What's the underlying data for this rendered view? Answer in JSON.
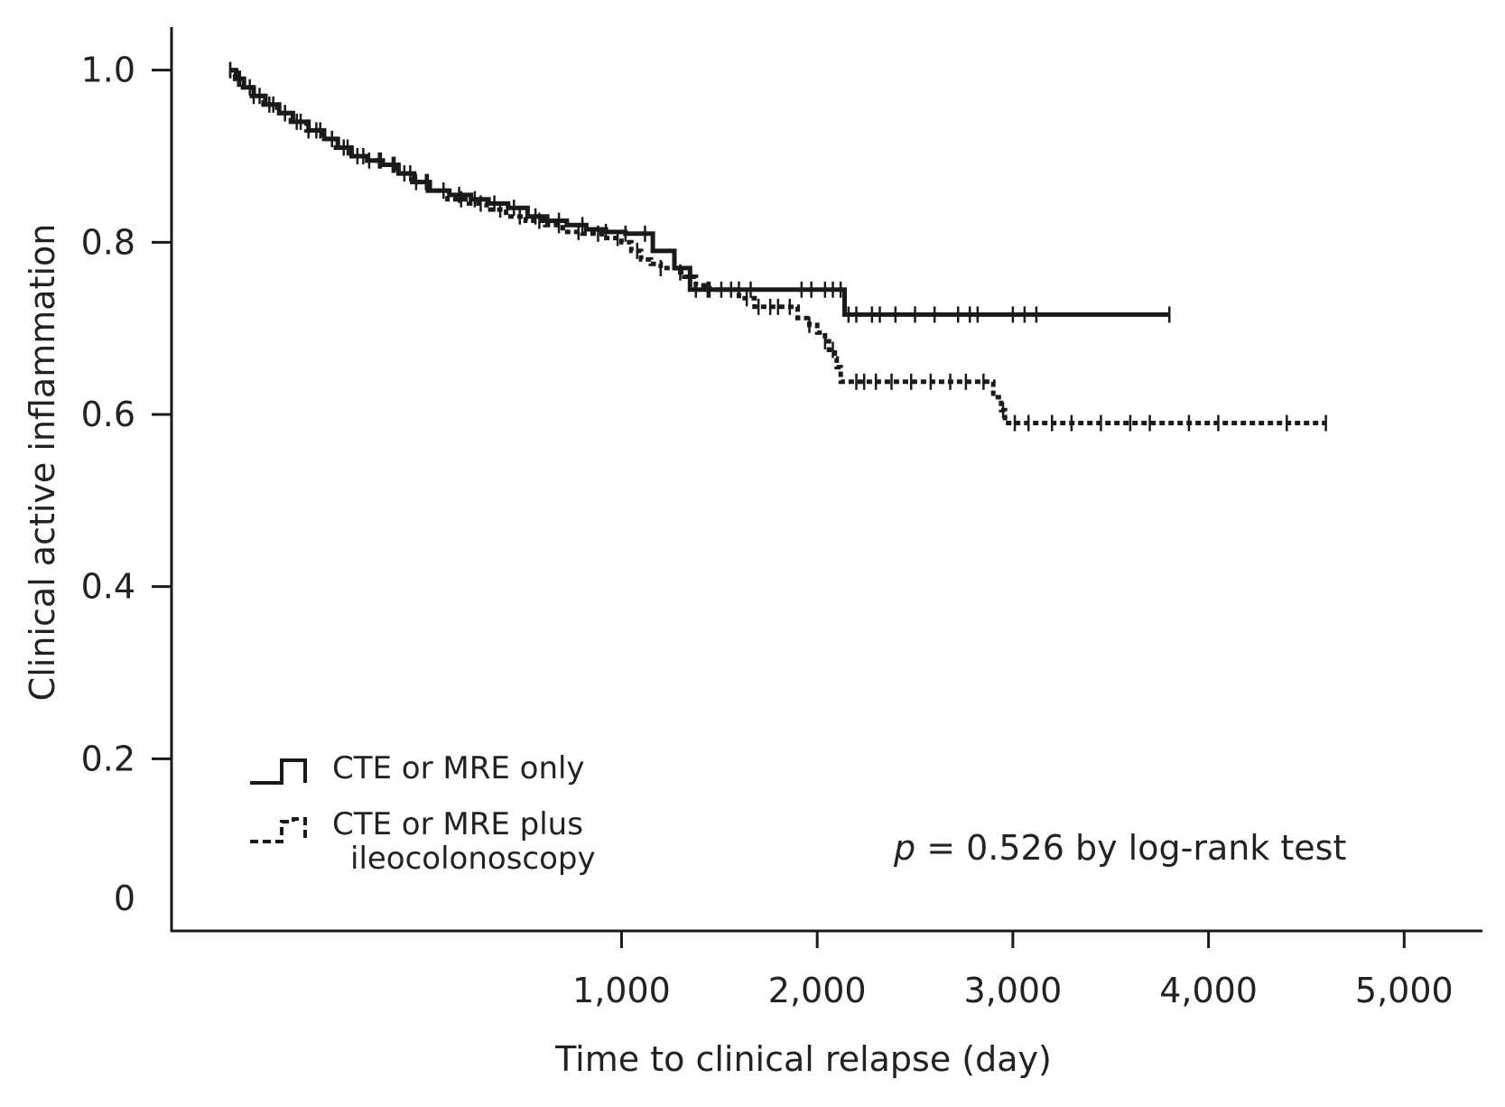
{
  "chart_data": {
    "type": "line",
    "subtype": "kaplan-meier",
    "title": "",
    "xlabel": "Time to clinical relapse (day)",
    "ylabel": "Clinical active inflammation",
    "xlim": [
      -1300,
      5400
    ],
    "ylim": [
      0,
      1.05
    ],
    "x_ticks": [
      1000,
      2000,
      3000,
      4000,
      5000
    ],
    "x_tick_labels": [
      "1,000",
      "2,000",
      "3,000",
      "4,000",
      "5,000"
    ],
    "y_ticks": [
      0,
      0.2,
      0.4,
      0.6,
      0.8,
      1.0
    ],
    "y_tick_labels": [
      "0",
      "0.2",
      "0.4",
      "0.6",
      "0.8",
      "1.0"
    ],
    "grid": false,
    "legend_position": "bottom-left",
    "annotation": {
      "italic": "p",
      "rest": " = 0.526 by log-rank test"
    },
    "series": [
      {
        "name": "CTE or MRE only",
        "line_style": "solid",
        "color": "#1a1a1a",
        "x": [
          -1000,
          -970,
          -930,
          -880,
          -820,
          -750,
          -680,
          -600,
          -520,
          -450,
          -380,
          -300,
          -220,
          -140,
          -60,
          20,
          120,
          230,
          320,
          420,
          520,
          620,
          720,
          820,
          920,
          1020,
          1090,
          1150,
          1160,
          1260,
          1270,
          1340,
          1350,
          2130,
          2140,
          3800
        ],
        "y": [
          1.0,
          0.99,
          0.98,
          0.97,
          0.96,
          0.95,
          0.94,
          0.93,
          0.92,
          0.91,
          0.9,
          0.895,
          0.89,
          0.88,
          0.87,
          0.86,
          0.855,
          0.85,
          0.845,
          0.84,
          0.83,
          0.825,
          0.82,
          0.815,
          0.812,
          0.81,
          0.81,
          0.81,
          0.79,
          0.79,
          0.77,
          0.77,
          0.745,
          0.745,
          0.716,
          0.716
        ],
        "censor_x": [
          -1000,
          -960,
          -900,
          -850,
          -780,
          -720,
          -660,
          -600,
          -540,
          -480,
          -420,
          -350,
          -290,
          -230,
          -170,
          -110,
          -50,
          10,
          90,
          170,
          250,
          350,
          450,
          560,
          680,
          800,
          920,
          1020,
          1120,
          1380,
          1440,
          1510,
          1600,
          1660,
          1920,
          1970,
          2040,
          2080,
          2120,
          2160,
          2200,
          2280,
          2320,
          2400,
          2500,
          2600,
          2720,
          2780,
          2820,
          3000,
          3060,
          3120,
          3800
        ]
      },
      {
        "name": "CTE or MRE plus ileocolonoscopy",
        "line_style": "dotted",
        "color": "#1a1a1a",
        "x": [
          -1000,
          -975,
          -935,
          -890,
          -830,
          -760,
          -690,
          -610,
          -530,
          -460,
          -390,
          -310,
          -230,
          -150,
          -70,
          10,
          110,
          220,
          310,
          410,
          510,
          610,
          700,
          800,
          900,
          1000,
          1050,
          1100,
          1150,
          1200,
          1280,
          1320,
          1380,
          1450,
          1600,
          1680,
          1850,
          1900,
          1960,
          2000,
          2040,
          2060,
          2090,
          2100,
          2120,
          2850,
          2900,
          2940,
          2960,
          4600
        ],
        "y": [
          1.0,
          0.99,
          0.98,
          0.97,
          0.96,
          0.95,
          0.94,
          0.93,
          0.92,
          0.91,
          0.9,
          0.895,
          0.89,
          0.88,
          0.87,
          0.86,
          0.85,
          0.845,
          0.838,
          0.83,
          0.825,
          0.82,
          0.812,
          0.81,
          0.805,
          0.8,
          0.79,
          0.78,
          0.775,
          0.77,
          0.765,
          0.76,
          0.75,
          0.745,
          0.735,
          0.725,
          0.725,
          0.712,
          0.704,
          0.695,
          0.685,
          0.675,
          0.665,
          0.655,
          0.638,
          0.638,
          0.62,
          0.605,
          0.59,
          0.59
        ],
        "censor_x": [
          -1000,
          -950,
          -880,
          -800,
          -720,
          -640,
          -560,
          -480,
          -400,
          -320,
          -240,
          -160,
          -80,
          0,
          90,
          180,
          280,
          380,
          480,
          580,
          680,
          780,
          880,
          980,
          1080,
          1200,
          1300,
          1450,
          1560,
          1640,
          1700,
          1760,
          1800,
          1860,
          1960,
          2040,
          2080,
          2200,
          2240,
          2300,
          2380,
          2480,
          2580,
          2680,
          2760,
          2850,
          2950,
          3010,
          3080,
          3200,
          3300,
          3450,
          3600,
          3700,
          3900,
          4050,
          4400,
          4600
        ]
      }
    ]
  }
}
